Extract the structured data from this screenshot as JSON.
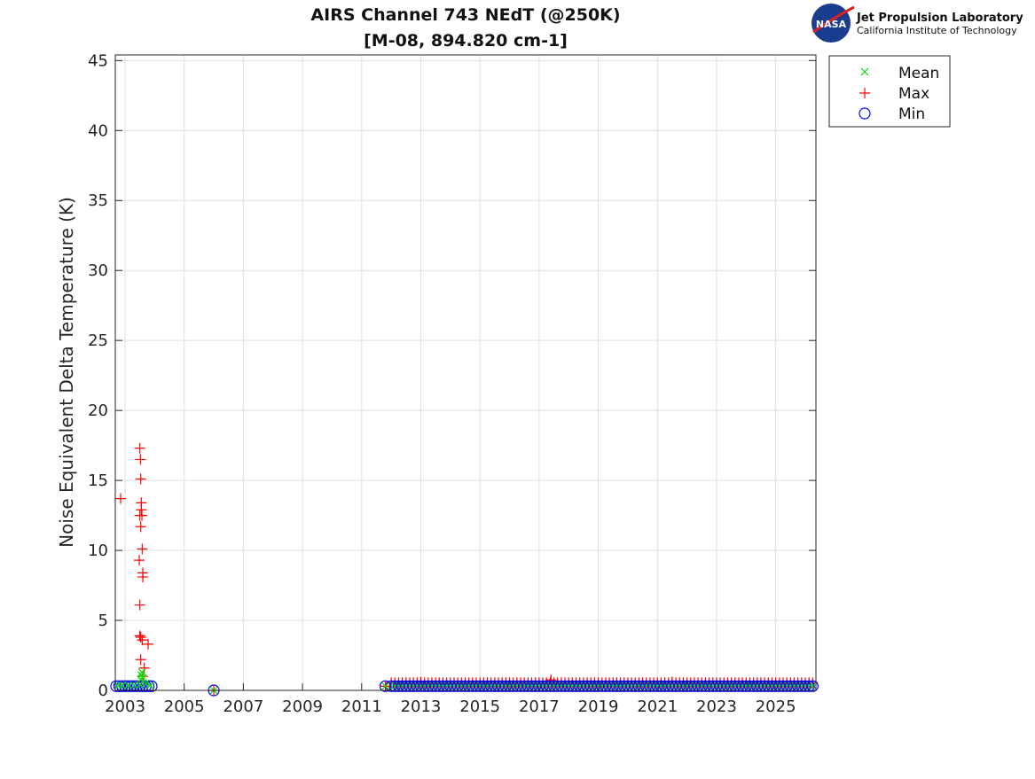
{
  "header": {
    "title_line1": "AIRS Channel 743 NEdT (@250K)",
    "title_line2": "[M-08, 894.820 cm-1]",
    "logo": {
      "emblem_text": "NASA",
      "org": "Jet Propulsion Laboratory",
      "institution": "California Institute of Technology"
    }
  },
  "chart_data": {
    "type": "scatter",
    "title": "AIRS Channel 743 NEdT (@250K) [M-08, 894.820 cm-1]",
    "xlabel": "",
    "ylabel": "Noise Equivalent Delta Temperature (K)",
    "xlim": [
      2002.67,
      2026.36
    ],
    "ylim": [
      0,
      45.4
    ],
    "xticks": [
      2003,
      2005,
      2007,
      2009,
      2011,
      2013,
      2015,
      2017,
      2019,
      2021,
      2023,
      2025
    ],
    "yticks": [
      0,
      5,
      10,
      15,
      20,
      25,
      30,
      35,
      40,
      45
    ],
    "grid": true,
    "legend_position": "outside-top-right",
    "colors": {
      "Mean": "#00dd00",
      "Max": "#ff0000",
      "Min": "#0000ff"
    },
    "series": [
      {
        "name": "Mean",
        "marker": "x",
        "x": [
          2002.75,
          2002.9,
          2003.1,
          2003.3,
          2003.5,
          2003.53,
          2003.55,
          2003.57,
          2003.6,
          2003.7,
          2003.85,
          2006.0,
          2011.8
        ],
        "y": [
          0.35,
          0.35,
          0.35,
          0.35,
          0.4,
          0.8,
          1.1,
          1.3,
          0.9,
          0.5,
          0.35,
          0.0,
          0.3
        ]
      },
      {
        "name": "Max",
        "marker": "+",
        "x": [
          2002.85,
          2003.5,
          2003.52,
          2003.53,
          2003.55,
          2003.55,
          2003.5,
          2003.57,
          2003.53,
          2003.58,
          2003.48,
          2003.6,
          2003.6,
          2003.5,
          2003.5,
          2003.53,
          2003.58,
          2003.78,
          2003.53,
          2003.65,
          2003.6,
          2006.0,
          2011.8
        ],
        "y": [
          13.7,
          17.3,
          16.5,
          15.1,
          13.4,
          12.9,
          12.5,
          12.5,
          11.7,
          10.1,
          9.3,
          8.4,
          8.1,
          6.1,
          3.9,
          3.8,
          3.6,
          3.3,
          2.2,
          1.6,
          1.0,
          0.0,
          0.3
        ]
      },
      {
        "name": "Min",
        "marker": "o",
        "x": [
          2002.7,
          2002.8,
          2002.9,
          2003.0,
          2003.1,
          2003.2,
          2003.3,
          2003.4,
          2003.5,
          2003.6,
          2003.7,
          2003.8,
          2003.9,
          2006.0,
          2011.8
        ],
        "y": [
          0.3,
          0.3,
          0.3,
          0.3,
          0.3,
          0.3,
          0.3,
          0.3,
          0.3,
          0.3,
          0.3,
          0.3,
          0.3,
          0.0,
          0.3
        ]
      }
    ],
    "dense_period": {
      "x_start": 2012.0,
      "x_end": 2026.25,
      "x_step": 0.125,
      "mean": 0.35,
      "max": 0.55,
      "min": 0.3,
      "max_spikes": [
        {
          "x": 2017.4,
          "y": 0.75
        },
        {
          "x": 2013.0,
          "y": 0.6
        },
        {
          "x": 2021.5,
          "y": 0.6
        }
      ]
    }
  }
}
